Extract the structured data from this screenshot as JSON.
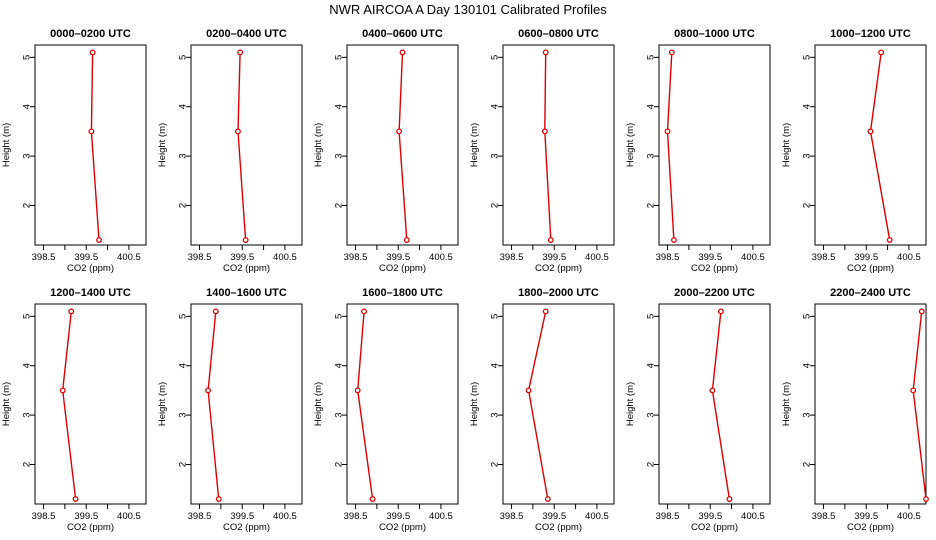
{
  "figure": {
    "title": "NWR AIRCOA A  Day 130101  Calibrated Profiles",
    "series_color": "#dd0000"
  },
  "chart_data": [
    {
      "type": "line",
      "title": "0000–0200 UTC",
      "xlabel": "CO2 (ppm)",
      "ylabel": "Height (m)",
      "x_ticks": [
        "398.5",
        "399.5",
        "400.5"
      ],
      "y_ticks": [
        "2",
        "3",
        "4",
        "5"
      ],
      "xlim": [
        398.3,
        400.9
      ],
      "ylim": [
        1.2,
        5.25
      ],
      "grid": false,
      "series": [
        {
          "points": [
            {
              "x": 399.8,
              "y": 1.3
            },
            {
              "x": 399.62,
              "y": 3.5
            },
            {
              "x": 399.65,
              "y": 5.1
            }
          ]
        }
      ]
    },
    {
      "type": "line",
      "title": "0200–0400 UTC",
      "xlabel": "CO2 (ppm)",
      "ylabel": "Height (m)",
      "x_ticks": [
        "398.5",
        "399.5",
        "400.5"
      ],
      "y_ticks": [
        "2",
        "3",
        "4",
        "5"
      ],
      "xlim": [
        398.3,
        400.9
      ],
      "ylim": [
        1.2,
        5.25
      ],
      "grid": false,
      "series": [
        {
          "points": [
            {
              "x": 399.58,
              "y": 1.3
            },
            {
              "x": 399.4,
              "y": 3.5
            },
            {
              "x": 399.45,
              "y": 5.1
            }
          ]
        }
      ]
    },
    {
      "type": "line",
      "title": "0400–0600 UTC",
      "xlabel": "CO2 (ppm)",
      "ylabel": "Height (m)",
      "x_ticks": [
        "398.5",
        "399.5",
        "400.5"
      ],
      "y_ticks": [
        "2",
        "3",
        "4",
        "5"
      ],
      "xlim": [
        398.3,
        400.9
      ],
      "ylim": [
        1.2,
        5.25
      ],
      "grid": false,
      "series": [
        {
          "points": [
            {
              "x": 399.7,
              "y": 1.3
            },
            {
              "x": 399.52,
              "y": 3.5
            },
            {
              "x": 399.6,
              "y": 5.1
            }
          ]
        }
      ]
    },
    {
      "type": "line",
      "title": "0600–0800 UTC",
      "xlabel": "CO2 (ppm)",
      "ylabel": "Height (m)",
      "x_ticks": [
        "398.5",
        "399.5",
        "400.5"
      ],
      "y_ticks": [
        "2",
        "3",
        "4",
        "5"
      ],
      "xlim": [
        398.3,
        400.9
      ],
      "ylim": [
        1.2,
        5.25
      ],
      "grid": false,
      "series": [
        {
          "points": [
            {
              "x": 399.42,
              "y": 1.3
            },
            {
              "x": 399.28,
              "y": 3.5
            },
            {
              "x": 399.3,
              "y": 5.1
            }
          ]
        }
      ]
    },
    {
      "type": "line",
      "title": "0800–1000 UTC",
      "xlabel": "CO2 (ppm)",
      "ylabel": "Height (m)",
      "x_ticks": [
        "398.5",
        "399.5",
        "400.5"
      ],
      "y_ticks": [
        "2",
        "3",
        "4",
        "5"
      ],
      "xlim": [
        398.3,
        400.9
      ],
      "ylim": [
        1.2,
        5.25
      ],
      "grid": false,
      "series": [
        {
          "points": [
            {
              "x": 398.65,
              "y": 1.3
            },
            {
              "x": 398.5,
              "y": 3.5
            },
            {
              "x": 398.6,
              "y": 5.1
            }
          ]
        }
      ]
    },
    {
      "type": "line",
      "title": "1000–1200 UTC",
      "xlabel": "CO2 (ppm)",
      "ylabel": "Height (m)",
      "x_ticks": [
        "398.5",
        "399.5",
        "400.5"
      ],
      "y_ticks": [
        "2",
        "3",
        "4",
        "5"
      ],
      "xlim": [
        398.3,
        400.9
      ],
      "ylim": [
        1.2,
        5.25
      ],
      "grid": false,
      "series": [
        {
          "points": [
            {
              "x": 400.05,
              "y": 1.3
            },
            {
              "x": 399.6,
              "y": 3.5
            },
            {
              "x": 399.85,
              "y": 5.1
            }
          ]
        }
      ]
    },
    {
      "type": "line",
      "title": "1200–1400 UTC",
      "xlabel": "CO2 (ppm)",
      "ylabel": "Height (m)",
      "x_ticks": [
        "398.5",
        "399.5",
        "400.5"
      ],
      "y_ticks": [
        "2",
        "3",
        "4",
        "5"
      ],
      "xlim": [
        398.3,
        400.9
      ],
      "ylim": [
        1.2,
        5.25
      ],
      "grid": false,
      "series": [
        {
          "points": [
            {
              "x": 399.25,
              "y": 1.3
            },
            {
              "x": 398.95,
              "y": 3.5
            },
            {
              "x": 399.15,
              "y": 5.1
            }
          ]
        }
      ]
    },
    {
      "type": "line",
      "title": "1400–1600 UTC",
      "xlabel": "CO2 (ppm)",
      "ylabel": "Height (m)",
      "x_ticks": [
        "398.5",
        "399.5",
        "400.5"
      ],
      "y_ticks": [
        "2",
        "3",
        "4",
        "5"
      ],
      "xlim": [
        398.3,
        400.9
      ],
      "ylim": [
        1.2,
        5.25
      ],
      "grid": false,
      "series": [
        {
          "points": [
            {
              "x": 398.95,
              "y": 1.3
            },
            {
              "x": 398.7,
              "y": 3.5
            },
            {
              "x": 398.88,
              "y": 5.1
            }
          ]
        }
      ]
    },
    {
      "type": "line",
      "title": "1600–1800 UTC",
      "xlabel": "CO2 (ppm)",
      "ylabel": "Height (m)",
      "x_ticks": [
        "398.5",
        "399.5",
        "400.5"
      ],
      "y_ticks": [
        "2",
        "3",
        "4",
        "5"
      ],
      "xlim": [
        398.3,
        400.9
      ],
      "ylim": [
        1.2,
        5.25
      ],
      "grid": false,
      "series": [
        {
          "points": [
            {
              "x": 398.9,
              "y": 1.3
            },
            {
              "x": 398.55,
              "y": 3.5
            },
            {
              "x": 398.7,
              "y": 5.1
            }
          ]
        }
      ]
    },
    {
      "type": "line",
      "title": "1800–2000 UTC",
      "xlabel": "CO2 (ppm)",
      "ylabel": "Height (m)",
      "x_ticks": [
        "398.5",
        "399.5",
        "400.5"
      ],
      "y_ticks": [
        "2",
        "3",
        "4",
        "5"
      ],
      "xlim": [
        398.3,
        400.9
      ],
      "ylim": [
        1.2,
        5.25
      ],
      "grid": false,
      "series": [
        {
          "points": [
            {
              "x": 399.35,
              "y": 1.3
            },
            {
              "x": 398.9,
              "y": 3.5
            },
            {
              "x": 399.3,
              "y": 5.1
            }
          ]
        }
      ]
    },
    {
      "type": "line",
      "title": "2000–2200 UTC",
      "xlabel": "CO2 (ppm)",
      "ylabel": "Height (m)",
      "x_ticks": [
        "398.5",
        "399.5",
        "400.5"
      ],
      "y_ticks": [
        "2",
        "3",
        "4",
        "5"
      ],
      "xlim": [
        398.3,
        400.9
      ],
      "ylim": [
        1.2,
        5.25
      ],
      "grid": false,
      "series": [
        {
          "points": [
            {
              "x": 399.95,
              "y": 1.3
            },
            {
              "x": 399.55,
              "y": 3.5
            },
            {
              "x": 399.75,
              "y": 5.1
            }
          ]
        }
      ]
    },
    {
      "type": "line",
      "title": "2200–2400 UTC",
      "xlabel": "CO2 (ppm)",
      "ylabel": "Height (m)",
      "x_ticks": [
        "398.5",
        "399.5",
        "400.5"
      ],
      "y_ticks": [
        "2",
        "3",
        "4",
        "5"
      ],
      "xlim": [
        398.3,
        400.9
      ],
      "ylim": [
        1.2,
        5.25
      ],
      "grid": false,
      "series": [
        {
          "points": [
            {
              "x": 400.9,
              "y": 1.3
            },
            {
              "x": 400.6,
              "y": 3.5
            },
            {
              "x": 400.8,
              "y": 5.1
            }
          ]
        }
      ]
    }
  ]
}
